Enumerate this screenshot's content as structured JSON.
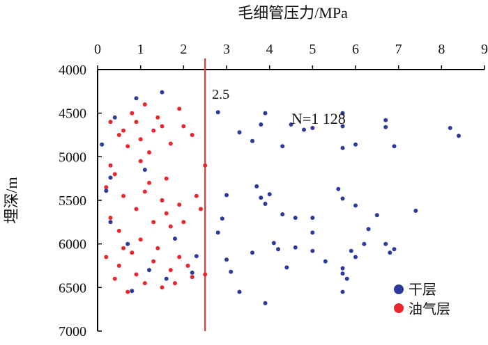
{
  "chart_data": {
    "type": "scatter",
    "title": "",
    "xlabel": "毛细管压力/MPa",
    "ylabel": "埋深/m",
    "xlim": [
      0,
      9
    ],
    "ylim": [
      4000,
      7000
    ],
    "y_inverted": true,
    "x_axis_position": "top",
    "x_ticks": [
      "0",
      "1",
      "2",
      "3",
      "4",
      "5",
      "6",
      "7",
      "8",
      "9"
    ],
    "y_ticks": [
      "4000",
      "4500",
      "5000",
      "5500",
      "6000",
      "6500",
      "7000"
    ],
    "legend_position": "bottom-right",
    "reference_line": {
      "x": 2.5,
      "label": "2.5",
      "color": "#e8262b"
    },
    "annotation": "N=1 128",
    "series": [
      {
        "name": "干层",
        "color": "#2b3a9c",
        "points": [
          [
            2.8,
            4490
          ],
          [
            3.6,
            4820
          ],
          [
            3.3,
            4720
          ],
          [
            3.9,
            4500
          ],
          [
            3.8,
            4630
          ],
          [
            4.3,
            4880
          ],
          [
            4.5,
            4630
          ],
          [
            4.8,
            4690
          ],
          [
            5.0,
            4670
          ],
          [
            5.7,
            4500
          ],
          [
            5.7,
            4650
          ],
          [
            5.7,
            4900
          ],
          [
            6.0,
            4860
          ],
          [
            6.7,
            4580
          ],
          [
            6.7,
            4660
          ],
          [
            6.9,
            4880
          ],
          [
            8.2,
            4670
          ],
          [
            8.4,
            4760
          ],
          [
            3.7,
            5340
          ],
          [
            3.0,
            5440
          ],
          [
            2.9,
            5710
          ],
          [
            2.8,
            5870
          ],
          [
            3.8,
            5470
          ],
          [
            4.0,
            5430
          ],
          [
            3.9,
            5540
          ],
          [
            4.3,
            5660
          ],
          [
            4.6,
            5700
          ],
          [
            5.0,
            5700
          ],
          [
            5.0,
            5870
          ],
          [
            5.6,
            5370
          ],
          [
            5.7,
            5480
          ],
          [
            6.0,
            5560
          ],
          [
            6.3,
            5830
          ],
          [
            6.5,
            5670
          ],
          [
            7.4,
            5620
          ],
          [
            4.1,
            5990
          ],
          [
            3.0,
            6180
          ],
          [
            3.1,
            6320
          ],
          [
            3.3,
            6550
          ],
          [
            3.6,
            6100
          ],
          [
            3.9,
            6680
          ],
          [
            4.2,
            6060
          ],
          [
            4.4,
            6270
          ],
          [
            4.6,
            6040
          ],
          [
            5.0,
            6080
          ],
          [
            5.3,
            6200
          ],
          [
            5.7,
            6280
          ],
          [
            5.7,
            6340
          ],
          [
            5.8,
            6400
          ],
          [
            5.9,
            6080
          ],
          [
            6.0,
            6150
          ],
          [
            5.7,
            6550
          ],
          [
            6.8,
            6100
          ],
          [
            6.9,
            6060
          ],
          [
            6.7,
            6000
          ],
          [
            6.2,
            6000
          ],
          [
            0.1,
            4860
          ],
          [
            0.3,
            5240
          ],
          [
            0.2,
            5390
          ],
          [
            0.9,
            4330
          ],
          [
            1.5,
            4260
          ],
          [
            1.8,
            5940
          ],
          [
            0.4,
            4550
          ],
          [
            0.3,
            5750
          ],
          [
            0.8,
            6540
          ],
          [
            1.2,
            6300
          ],
          [
            0.7,
            6000
          ],
          [
            1.5,
            5500
          ],
          [
            1.1,
            5150
          ],
          [
            2.2,
            6330
          ],
          [
            2.3,
            6140
          ],
          [
            1.6,
            6400
          ]
        ]
      },
      {
        "name": "油气层",
        "color": "#e8262b",
        "points": [
          [
            0.3,
            4600
          ],
          [
            0.6,
            4700
          ],
          [
            1.0,
            4800
          ],
          [
            1.4,
            4550
          ],
          [
            1.7,
            4850
          ],
          [
            0.8,
            4500
          ],
          [
            1.3,
            4700
          ],
          [
            2.0,
            4650
          ],
          [
            1.1,
            4400
          ],
          [
            0.5,
            4750
          ],
          [
            1.9,
            4450
          ],
          [
            0.7,
            4880
          ],
          [
            1.5,
            4650
          ],
          [
            2.2,
            4750
          ],
          [
            0.9,
            4600
          ],
          [
            1.2,
            4950
          ],
          [
            1.0,
            5050
          ],
          [
            0.4,
            5200
          ],
          [
            1.6,
            5250
          ],
          [
            0.2,
            5350
          ],
          [
            0.6,
            5450
          ],
          [
            1.1,
            5400
          ],
          [
            1.5,
            5500
          ],
          [
            1.9,
            5550
          ],
          [
            0.9,
            5600
          ],
          [
            0.3,
            5700
          ],
          [
            1.3,
            5750
          ],
          [
            1.7,
            5800
          ],
          [
            0.5,
            5850
          ],
          [
            1.0,
            5950
          ],
          [
            2.3,
            5450
          ],
          [
            2.4,
            5600
          ],
          [
            1.2,
            5300
          ],
          [
            0.8,
            6100
          ],
          [
            0.2,
            6150
          ],
          [
            0.5,
            6250
          ],
          [
            0.9,
            6350
          ],
          [
            1.3,
            6200
          ],
          [
            1.7,
            6300
          ],
          [
            2.1,
            6250
          ],
          [
            0.4,
            6400
          ],
          [
            1.1,
            6450
          ],
          [
            1.5,
            6500
          ],
          [
            0.7,
            6550
          ],
          [
            1.9,
            6150
          ],
          [
            2.2,
            6380
          ],
          [
            2.5,
            5100
          ],
          [
            2.5,
            6350
          ],
          [
            1.4,
            6050
          ],
          [
            0.6,
            6050
          ],
          [
            1.8,
            6450
          ],
          [
            2.0,
            5750
          ],
          [
            0.3,
            5100
          ],
          [
            1.6,
            5650
          ]
        ]
      }
    ]
  }
}
